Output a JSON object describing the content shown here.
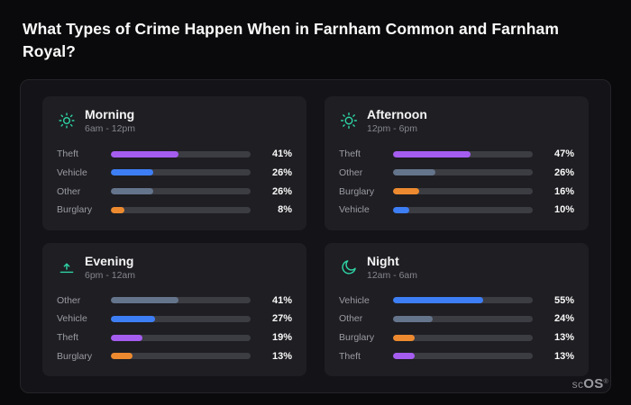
{
  "page": {
    "title": "What Types of Crime Happen When in Farnham Common and Farnham Royal?"
  },
  "watermark": {
    "prefix": "sc",
    "suffix": "OS",
    "symbol": "®"
  },
  "colors": {
    "theft": "#a55df0",
    "vehicle": "#3d7ef5",
    "other": "#64748b",
    "burglary": "#ed8a2f",
    "icon_accent": "#2fd4a5"
  },
  "chart_data": [
    {
      "type": "bar",
      "orientation": "horizontal",
      "title": "Morning",
      "subtitle": "6am - 12pm",
      "icon": "sun-icon",
      "unit": "%",
      "xlim": [
        0,
        85
      ],
      "categories": [
        "Theft",
        "Vehicle",
        "Other",
        "Burglary"
      ],
      "values": [
        41,
        26,
        26,
        8
      ]
    },
    {
      "type": "bar",
      "orientation": "horizontal",
      "title": "Afternoon",
      "subtitle": "12pm - 6pm",
      "icon": "sun-icon",
      "unit": "%",
      "xlim": [
        0,
        85
      ],
      "categories": [
        "Theft",
        "Other",
        "Burglary",
        "Vehicle"
      ],
      "values": [
        47,
        26,
        16,
        10
      ]
    },
    {
      "type": "bar",
      "orientation": "horizontal",
      "title": "Evening",
      "subtitle": "6pm - 12am",
      "icon": "sunset-icon",
      "unit": "%",
      "xlim": [
        0,
        85
      ],
      "categories": [
        "Other",
        "Vehicle",
        "Theft",
        "Burglary"
      ],
      "values": [
        41,
        27,
        19,
        13
      ]
    },
    {
      "type": "bar",
      "orientation": "horizontal",
      "title": "Night",
      "subtitle": "12am - 6am",
      "icon": "moon-icon",
      "unit": "%",
      "xlim": [
        0,
        85
      ],
      "categories": [
        "Vehicle",
        "Other",
        "Burglary",
        "Theft"
      ],
      "values": [
        55,
        24,
        13,
        13
      ]
    }
  ]
}
